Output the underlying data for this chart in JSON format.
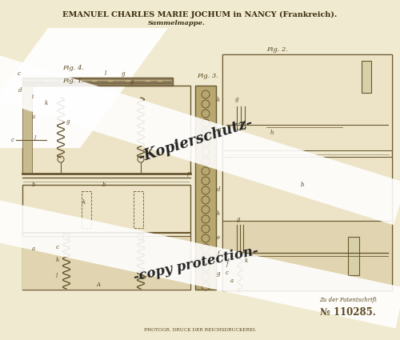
{
  "bg_color": "#f0ead0",
  "title_line1": "EMANUEL CHARLES MARIE JOCHUM in NANCY (Frankreich).",
  "title_line2": "Sammelmappe.",
  "bottom_left": "PHOTOGR. DRUCK DER REICHSDRUCKEREI.",
  "bottom_right_line1": "Zu der Patentschrift",
  "bottom_right_line2": "№ 110285.",
  "watermark1": "-Kopierschutz-",
  "watermark2": "-copy protection-",
  "fig1_label": "Fig. 1.",
  "fig2_label": "Fig. 2.",
  "fig3_label": "Fig. 3.",
  "fig4_label": "Fig. 4.",
  "draw_color": "#5a4820",
  "line_color": "#6a5830",
  "light_fill": "#ede4c8",
  "mid_fill": "#e0d5b0",
  "dark_fill": "#c8bb90",
  "fig3_fill": "#b8a870",
  "fig4_fill": "#908060",
  "paper_white": "#f5f0dc",
  "wm_color": "white",
  "wm_text_color": "#222222",
  "title_color": "#3a2e10",
  "bottom_color": "#5a4820"
}
